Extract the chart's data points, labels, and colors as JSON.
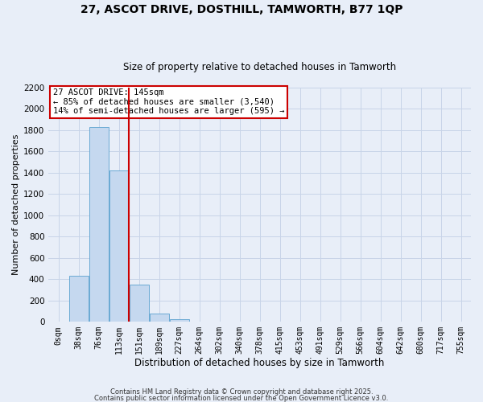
{
  "title_line1": "27, ASCOT DRIVE, DOSTHILL, TAMWORTH, B77 1QP",
  "title_line2": "Size of property relative to detached houses in Tamworth",
  "xlabel": "Distribution of detached houses by size in Tamworth",
  "ylabel": "Number of detached properties",
  "bar_labels": [
    "0sqm",
    "38sqm",
    "76sqm",
    "113sqm",
    "151sqm",
    "189sqm",
    "227sqm",
    "264sqm",
    "302sqm",
    "340sqm",
    "378sqm",
    "415sqm",
    "453sqm",
    "491sqm",
    "529sqm",
    "566sqm",
    "604sqm",
    "642sqm",
    "680sqm",
    "717sqm",
    "755sqm"
  ],
  "bar_values": [
    0,
    430,
    1830,
    1420,
    350,
    75,
    25,
    0,
    0,
    0,
    0,
    0,
    0,
    0,
    0,
    0,
    0,
    0,
    0,
    0,
    0
  ],
  "bar_color": "#c5d8ef",
  "bar_edge_color": "#6aaad4",
  "grid_color": "#c8d4e8",
  "background_color": "#e8eef8",
  "red_line_x": 3.5,
  "annotation_text": "27 ASCOT DRIVE: 145sqm\n← 85% of detached houses are smaller (3,540)\n14% of semi-detached houses are larger (595) →",
  "annotation_box_color": "#ffffff",
  "annotation_border_color": "#cc0000",
  "footer_line1": "Contains HM Land Registry data © Crown copyright and database right 2025.",
  "footer_line2": "Contains public sector information licensed under the Open Government Licence v3.0.",
  "ylim": [
    0,
    2200
  ],
  "yticks": [
    0,
    200,
    400,
    600,
    800,
    1000,
    1200,
    1400,
    1600,
    1800,
    2000,
    2200
  ],
  "title_fontsize": 10,
  "subtitle_fontsize": 8.5,
  "ylabel_fontsize": 8,
  "xlabel_fontsize": 8.5
}
